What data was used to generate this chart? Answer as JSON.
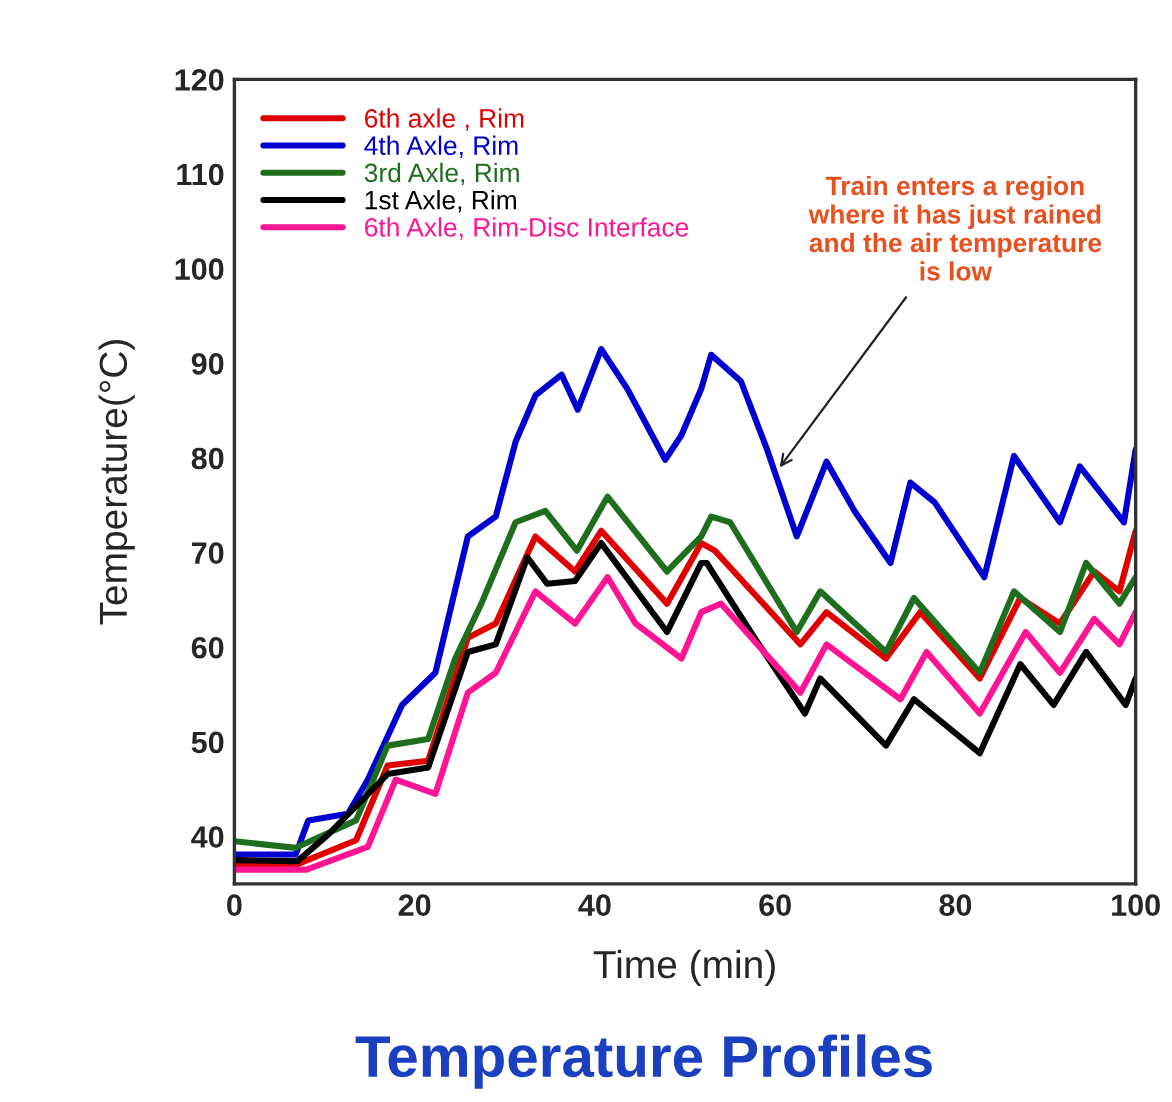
{
  "chart_data": {
    "type": "line",
    "title": "Temperature Profiles",
    "xlabel": "Time (min)",
    "ylabel": "Temperature(°C)",
    "xlim": [
      0,
      100
    ],
    "ylim": [
      35,
      120
    ],
    "xticks": [
      0,
      20,
      40,
      60,
      80,
      100
    ],
    "yticks": [
      40,
      50,
      60,
      70,
      80,
      90,
      100,
      110,
      120
    ],
    "grid": false,
    "legend": "top left",
    "marker": "none",
    "line_style": "solid",
    "annotations": [
      {
        "text": "Train enters a region\nwhere it has just rained\nand the air temperature\nis low",
        "x": 60.5,
        "y": 79
      }
    ],
    "series": [
      {
        "name": "6th axle , Rim",
        "color": "#e00000",
        "x": [
          0,
          6.8,
          13.5,
          17,
          21.5,
          25.9,
          29,
          33.4,
          37.8,
          40.7,
          48,
          51.8,
          53.3,
          62.8,
          65.7,
          72.3,
          76.1,
          82.7,
          87.2,
          91.6,
          95.4,
          98.2,
          100
        ],
        "values": [
          37,
          37,
          39.6,
          47.5,
          48,
          61,
          62.5,
          71.7,
          68,
          72.3,
          64.6,
          71,
          70.2,
          60.3,
          63.7,
          58.8,
          63.7,
          56.7,
          65.2,
          62.5,
          68,
          65.9,
          72.3
        ]
      },
      {
        "name": "4th Axle, Rim",
        "color": "#0000d0",
        "x": [
          0,
          6.8,
          8.2,
          12.6,
          14.8,
          18.6,
          22.3,
          25.9,
          29,
          31.2,
          33.4,
          36.3,
          38.1,
          40.7,
          43.6,
          47.8,
          49.6,
          51.8,
          52.9,
          56.2,
          59.1,
          62.4,
          65.7,
          68.8,
          72.8,
          75,
          77.7,
          83.2,
          86.5,
          91.6,
          93.8,
          98.7,
          100
        ],
        "values": [
          38.1,
          38.1,
          41.7,
          42.4,
          46,
          53.9,
          57.3,
          71.7,
          73.8,
          81.7,
          86.6,
          88.8,
          85.1,
          91.5,
          87.3,
          79.8,
          82.4,
          87.3,
          90.9,
          88.1,
          80.9,
          71.7,
          79.6,
          74.4,
          68.9,
          77.4,
          75.3,
          67.4,
          80.2,
          73.2,
          79.1,
          73.2,
          80.9
        ]
      },
      {
        "name": "3rd Axle, Rim",
        "color": "#1e6e1e",
        "x": [
          0,
          6.8,
          13.5,
          17,
          21.5,
          24.5,
          27.4,
          31.2,
          34.5,
          38,
          41.4,
          48,
          51.8,
          52.9,
          55,
          62.4,
          65,
          72.3,
          75.4,
          82.7,
          86.5,
          91.6,
          94.5,
          98.2,
          100
        ],
        "values": [
          39.5,
          38.8,
          41.7,
          49.6,
          50.3,
          58.8,
          64.6,
          73.2,
          74.4,
          70.2,
          75.9,
          68,
          71.7,
          73.8,
          73.2,
          61.6,
          65.9,
          59.5,
          65.2,
          57.3,
          65.9,
          61.6,
          68.9,
          64.6,
          67.4
        ]
      },
      {
        "name": "1st Axle, Rim",
        "color": "#000000",
        "x": [
          0,
          7,
          10.4,
          17,
          21.5,
          25.9,
          29,
          32.5,
          34.7,
          37.8,
          40.7,
          48,
          51.8,
          52.4,
          57.7,
          63.3,
          65,
          72.3,
          75.4,
          82.7,
          87.2,
          90.9,
          94.5,
          98.9,
          100
        ],
        "values": [
          37.5,
          37.4,
          40.2,
          46.6,
          47.3,
          59.5,
          60.3,
          69.5,
          66.7,
          67,
          71,
          61.6,
          68.9,
          68.9,
          61,
          53,
          56.7,
          49.6,
          54.5,
          48.8,
          58.2,
          53.9,
          59.5,
          53.9,
          56.7
        ]
      },
      {
        "name": "6th Axle, Rim-Disc Interface",
        "color": "#ff1493",
        "x": [
          0,
          8,
          14.8,
          17.9,
          22.3,
          25.9,
          29,
          33.4,
          37.8,
          41.4,
          44.5,
          49.6,
          51.8,
          54,
          62.8,
          65.7,
          73.9,
          76.8,
          82.7,
          87.8,
          91.6,
          95.4,
          98.2,
          100
        ],
        "values": [
          36.5,
          36.5,
          38.9,
          46,
          44.5,
          55.2,
          57.3,
          65.9,
          62.5,
          67.4,
          62.5,
          58.8,
          63.7,
          64.6,
          55.2,
          60.3,
          54.5,
          59.5,
          53,
          61.6,
          57.3,
          63,
          60.3,
          63.7
        ]
      }
    ]
  }
}
